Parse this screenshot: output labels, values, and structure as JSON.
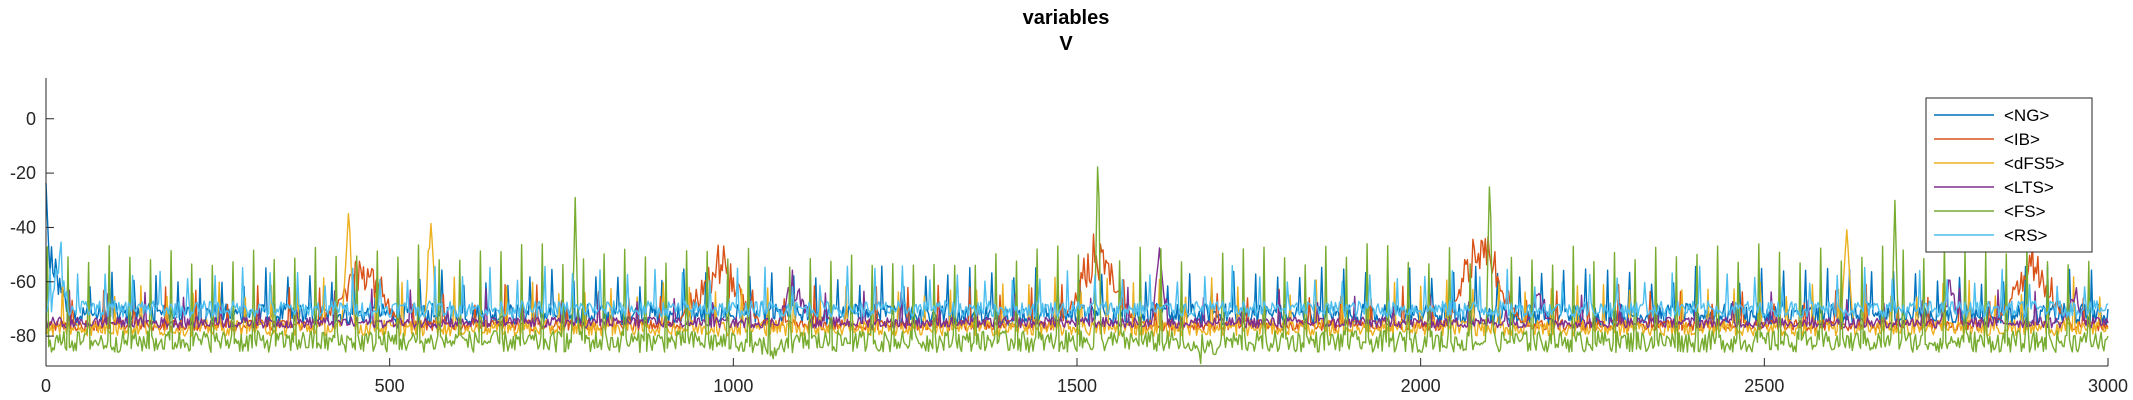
{
  "chart_data": {
    "type": "line",
    "title": [
      "variables",
      "V"
    ],
    "xlabel": "",
    "ylabel": "",
    "xlim": [
      0,
      3000
    ],
    "ylim": [
      -91,
      15
    ],
    "xticks": [
      0,
      500,
      1000,
      1500,
      2000,
      2500,
      3000
    ],
    "xtick_labels": [
      "0",
      "500",
      "1000",
      "1500",
      "2000",
      "2500",
      "3000"
    ],
    "yticks": [
      0,
      -20,
      -40,
      -60,
      -80
    ],
    "ytick_labels": [
      "0",
      "-20",
      "-40",
      "-60",
      "-80"
    ],
    "grid": false,
    "legend_position": "top-right",
    "series": [
      {
        "name": "<NG>",
        "color": "#0072BD",
        "baseline": -72,
        "noise": 4,
        "spike_every": 32,
        "spike_to": -58,
        "events": [
          [
            0,
            15,
            4
          ],
          [
            5,
            -45,
            30
          ]
        ]
      },
      {
        "name": "<IB>",
        "color": "#D95319",
        "baseline": -76,
        "noise": 2,
        "spike_every": 45,
        "spike_to": -65,
        "events": [
          [
            460,
            -48,
            60
          ],
          [
            980,
            -48,
            60
          ],
          [
            1530,
            -42,
            55
          ],
          [
            2090,
            -35,
            55
          ],
          [
            2890,
            -48,
            55
          ]
        ]
      },
      {
        "name": "<dFS5>",
        "color": "#EDB120",
        "baseline": -77,
        "noise": 3,
        "spike_every": 38,
        "spike_to": -62,
        "events": [
          [
            440,
            -35,
            8
          ],
          [
            560,
            -38,
            8
          ],
          [
            2620,
            -40,
            8
          ]
        ]
      },
      {
        "name": "<LTS>",
        "color": "#7E2F8E",
        "baseline": -75,
        "noise": 2,
        "spike_every": 55,
        "spike_to": -66,
        "events": [
          [
            1090,
            -55,
            25
          ],
          [
            1620,
            -48,
            10
          ],
          [
            2170,
            -58,
            15
          ],
          [
            2770,
            -60,
            15
          ],
          [
            2950,
            -62,
            15
          ]
        ]
      },
      {
        "name": "<FS>",
        "color": "#77AC30",
        "baseline": -82,
        "noise": 4,
        "spike_every": 30,
        "spike_to": -50,
        "events": [
          [
            770,
            -30,
            4
          ],
          [
            1530,
            -18,
            4
          ],
          [
            2100,
            -25,
            4
          ],
          [
            2690,
            -30,
            4
          ],
          [
            1060,
            -88,
            30
          ],
          [
            1680,
            -88,
            30
          ]
        ]
      },
      {
        "name": "<RS>",
        "color": "#4DBEEE",
        "baseline": -70,
        "noise": 3,
        "spike_every": 40,
        "spike_to": -58,
        "events": [
          [
            20,
            -43,
            12
          ]
        ]
      }
    ]
  }
}
